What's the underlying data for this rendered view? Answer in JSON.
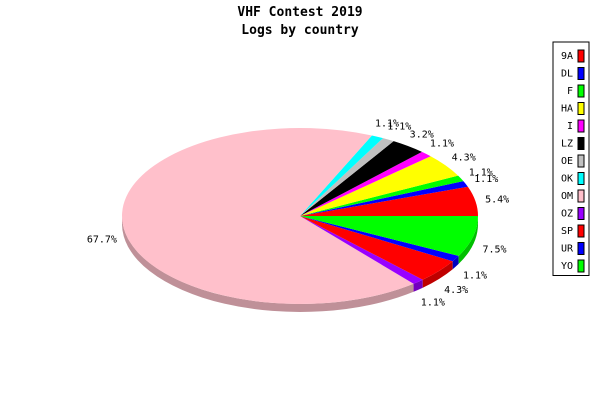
{
  "chart_data": {
    "type": "pie",
    "title": "VHF Contest 2019",
    "subtitle": "Logs by country",
    "slices": [
      {
        "label": "9A",
        "value": 5.4,
        "value_label": "5.4%",
        "color": "#ff0000"
      },
      {
        "label": "DL",
        "value": 1.1,
        "value_label": "1.1%",
        "color": "#0000ff"
      },
      {
        "label": "F",
        "value": 1.1,
        "value_label": "1.1%",
        "color": "#00ff00"
      },
      {
        "label": "HA",
        "value": 4.3,
        "value_label": "4.3%",
        "color": "#ffff00"
      },
      {
        "label": "I",
        "value": 1.1,
        "value_label": "1.1%",
        "color": "#ff00ff"
      },
      {
        "label": "LZ",
        "value": 3.2,
        "value_label": "3.2%",
        "color": "#000000"
      },
      {
        "label": "OE",
        "value": 1.1,
        "value_label": "1.1%",
        "color": "#c0c0c0"
      },
      {
        "label": "OK",
        "value": 1.1,
        "value_label": "1.1%",
        "color": "#00ffff"
      },
      {
        "label": "OM",
        "value": 67.7,
        "value_label": "67.7%",
        "color": "#ffc0cb"
      },
      {
        "label": "OZ",
        "value": 1.1,
        "value_label": "1.1%",
        "color": "#9900ff"
      },
      {
        "label": "SP",
        "value": 4.3,
        "value_label": "4.3%",
        "color": "#ff0000"
      },
      {
        "label": "UR",
        "value": 1.1,
        "value_label": "1.1%",
        "color": "#0000ff"
      },
      {
        "label": "YO",
        "value": 7.5,
        "value_label": "7.5%",
        "color": "#00ff00"
      }
    ],
    "legend_position": "right"
  }
}
